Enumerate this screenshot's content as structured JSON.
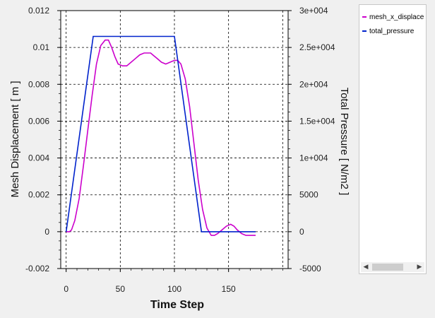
{
  "chart_data": {
    "type": "line",
    "xlabel": "Time Step",
    "ylabel": "Mesh Displacement [ m ]",
    "y2label": "Total Pressure [ N/m2 ]",
    "xlim": [
      -5,
      205
    ],
    "ylim": [
      -0.002,
      0.012
    ],
    "y2lim": [
      -5000,
      30000
    ],
    "xticks": [
      "0",
      "50",
      "100",
      "150"
    ],
    "xtick_values": [
      0,
      50,
      100,
      150
    ],
    "yticks": [
      "-0.002",
      "0",
      "0.002",
      "0.004",
      "0.006",
      "0.008",
      "0.01",
      "0.012"
    ],
    "ytick_values": [
      -0.002,
      0,
      0.002,
      0.004,
      0.006,
      0.008,
      0.01,
      0.012
    ],
    "y2ticks": [
      "-5000",
      "0",
      "5000",
      "1e+004",
      "1.5e+004",
      "2e+004",
      "2.5e+004",
      "3e+004"
    ],
    "y2tick_values": [
      -5000,
      0,
      5000,
      10000,
      15000,
      20000,
      25000,
      30000
    ],
    "grid": true,
    "legend_position": "right",
    "series": [
      {
        "name": "mesh_x_displace",
        "axis": "left",
        "color": "#cc00cc",
        "x": [
          0,
          3,
          5,
          8,
          12,
          16,
          20,
          24,
          28,
          32,
          36,
          39,
          42,
          45,
          48,
          52,
          56,
          60,
          64,
          68,
          72,
          76,
          78,
          80,
          84,
          88,
          92,
          96,
          100,
          103,
          106,
          110,
          114,
          118,
          122,
          126,
          130,
          134,
          137,
          140,
          144,
          148,
          152,
          155,
          158,
          162,
          166,
          170,
          175
        ],
        "y": [
          0.0,
          0.0,
          0.0001,
          0.0006,
          0.0018,
          0.0036,
          0.0055,
          0.0074,
          0.0091,
          0.0101,
          0.0104,
          0.0104,
          0.01,
          0.0095,
          0.0091,
          0.009,
          0.009,
          0.0092,
          0.0094,
          0.0096,
          0.0097,
          0.0097,
          0.0097,
          0.0096,
          0.0094,
          0.0092,
          0.0091,
          0.0092,
          0.0093,
          0.0093,
          0.0091,
          0.0083,
          0.0068,
          0.0048,
          0.0028,
          0.0012,
          0.0002,
          -0.0002,
          -0.0002,
          -0.0001,
          0.0001,
          0.0003,
          0.0004,
          0.0003,
          0.0001,
          -0.0001,
          -0.0002,
          -0.0002,
          -0.0002
        ]
      },
      {
        "name": "total_pressure",
        "axis": "right",
        "color": "#0022cc",
        "x": [
          0,
          25,
          100,
          125,
          175
        ],
        "y": [
          0,
          26500,
          26500,
          0,
          0
        ]
      }
    ]
  },
  "legend": {
    "items": [
      {
        "label": "mesh_x_displace",
        "color": "#cc00cc"
      },
      {
        "label": "total_pressure",
        "color": "#0022cc"
      }
    ],
    "scroll_left_icon": "◀",
    "scroll_right_icon": "▶"
  }
}
